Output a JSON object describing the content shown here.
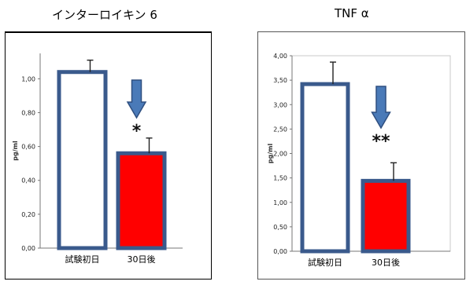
{
  "chart_data": [
    {
      "type": "bar",
      "title": "インターロイキン 6",
      "ylabel": "pg/ml",
      "categories": [
        "試験初日",
        "30日後"
      ],
      "values": [
        1.04,
        0.56
      ],
      "error": [
        0.07,
        0.09
      ],
      "bar_colors": [
        "#ffffff",
        "#ff0000"
      ],
      "bar_edge_color": "#3a5a8c",
      "ylim": [
        0,
        1.15
      ],
      "yticks": [
        0,
        0.2,
        0.4,
        0.6,
        0.8,
        1.0
      ],
      "ytick_labels": [
        "0,00",
        "0,20",
        "0,40",
        "0,60",
        "0,80",
        "1,00"
      ],
      "significance": "*",
      "arrow_color": "#4a7ab8"
    },
    {
      "type": "bar",
      "title": "TNF α",
      "ylabel": "pg/ml",
      "categories": [
        "試験初日",
        "30日後"
      ],
      "values": [
        3.42,
        1.44
      ],
      "error": [
        0.45,
        0.37
      ],
      "bar_colors": [
        "#ffffff",
        "#ff0000"
      ],
      "bar_edge_color": "#3a5a8c",
      "ylim": [
        0,
        4.0
      ],
      "yticks": [
        0,
        0.5,
        1.0,
        1.5,
        2.0,
        2.5,
        3.0,
        3.5,
        4.0
      ],
      "ytick_labels": [
        "0,00",
        "0,50",
        "1,00",
        "1,50",
        "2,00",
        "2,50",
        "3,00",
        "3,50",
        "4,00"
      ],
      "significance": "**",
      "arrow_color": "#4a7ab8"
    }
  ]
}
